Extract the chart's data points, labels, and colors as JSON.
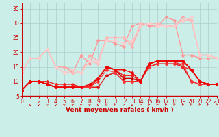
{
  "bg_color": "#cceee8",
  "grid_color": "#aacccc",
  "xlabel": "Vent moyen/en rafales ( km/h )",
  "ylim": [
    5,
    37
  ],
  "xlim": [
    0,
    23
  ],
  "yticks": [
    5,
    10,
    15,
    20,
    25,
    30,
    35
  ],
  "xticks": [
    0,
    1,
    2,
    3,
    4,
    5,
    6,
    7,
    8,
    9,
    10,
    11,
    12,
    13,
    14,
    15,
    16,
    17,
    18,
    19,
    20,
    21,
    22,
    23
  ],
  "lines": [
    {
      "y": [
        13,
        18,
        18,
        21,
        15,
        15,
        13,
        19,
        16,
        24,
        24,
        23,
        22,
        29,
        30,
        29,
        29,
        32,
        31,
        19,
        19,
        18,
        18,
        18
      ],
      "color": "#ff9999",
      "lw": 1.0
    },
    {
      "y": [
        13,
        18,
        18,
        21,
        15,
        15,
        14,
        13,
        19,
        17,
        25,
        25,
        25,
        22,
        29,
        30,
        30,
        29,
        29,
        32,
        31,
        19,
        19,
        18
      ],
      "color": "#ffaaaa",
      "lw": 1.0
    },
    {
      "y": [
        13,
        18,
        18,
        21,
        15,
        13,
        13,
        13,
        17,
        16,
        25,
        25,
        25,
        23,
        30,
        30,
        30,
        29,
        29,
        31,
        31,
        19,
        19,
        18
      ],
      "color": "#ffbbbb",
      "lw": 1.0
    },
    {
      "y": [
        13,
        18,
        18,
        21,
        15,
        13,
        14,
        13,
        17,
        17,
        24,
        24,
        23,
        24,
        29,
        30,
        29,
        29,
        29,
        31,
        32,
        19,
        19,
        18
      ],
      "color": "#ffcccc",
      "lw": 0.8
    },
    {
      "y": [
        7,
        10,
        10,
        9,
        8,
        8,
        8,
        8,
        8,
        11,
        15,
        14,
        11,
        11,
        10,
        16,
        17,
        17,
        17,
        17,
        14,
        10,
        9,
        9
      ],
      "color": "#cc0000",
      "lw": 1.2
    },
    {
      "y": [
        7,
        10,
        10,
        9,
        8,
        8,
        8,
        8,
        8,
        8,
        12,
        13,
        10,
        10,
        10,
        15,
        16,
        16,
        16,
        15,
        10,
        9,
        9,
        9
      ],
      "color": "#dd1111",
      "lw": 1.0
    },
    {
      "y": [
        7,
        10,
        10,
        10,
        9,
        9,
        9,
        8,
        8,
        11,
        15,
        14,
        12,
        12,
        10,
        16,
        17,
        17,
        17,
        15,
        14,
        10,
        9,
        9
      ],
      "color": "#ee2222",
      "lw": 1.0
    },
    {
      "y": [
        7,
        10,
        10,
        9,
        8,
        8,
        8,
        8,
        8,
        10,
        14,
        13,
        10,
        10,
        10,
        15,
        16,
        16,
        16,
        16,
        10,
        9,
        9,
        9
      ],
      "color": "#ff3333",
      "lw": 0.8
    },
    {
      "y": [
        7,
        10,
        10,
        9,
        8,
        8,
        8,
        8,
        9,
        11,
        15,
        14,
        14,
        13,
        10,
        16,
        17,
        17,
        17,
        17,
        14,
        10,
        9,
        9
      ],
      "color": "#ee0000",
      "lw": 1.0
    }
  ],
  "marker": "D",
  "marker_size": 2.0,
  "tick_color": "#cc0000",
  "label_color": "#cc0000",
  "axis_label_fontsize": 6.5,
  "tick_fontsize": 5.5
}
